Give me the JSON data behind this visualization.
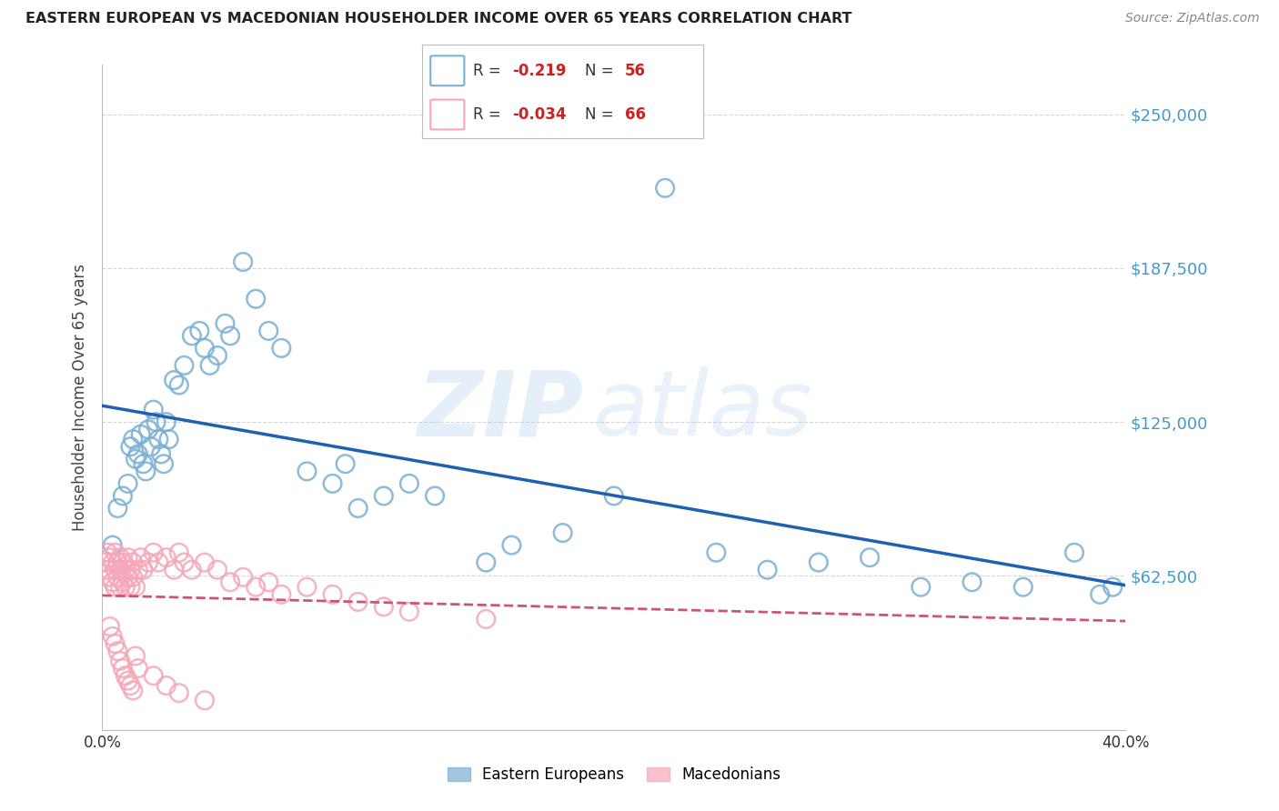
{
  "title": "EASTERN EUROPEAN VS MACEDONIAN HOUSEHOLDER INCOME OVER 65 YEARS CORRELATION CHART",
  "source": "Source: ZipAtlas.com",
  "ylabel": "Householder Income Over 65 years",
  "xlim": [
    0.0,
    0.4
  ],
  "ylim": [
    0,
    270000
  ],
  "yticks": [
    0,
    62500,
    125000,
    187500,
    250000
  ],
  "ytick_labels": [
    "",
    "$62,500",
    "$125,000",
    "$187,500",
    "$250,000"
  ],
  "xticks": [
    0.0,
    0.05,
    0.1,
    0.15,
    0.2,
    0.25,
    0.3,
    0.35,
    0.4
  ],
  "xtick_labels": [
    "0.0%",
    "",
    "",
    "",
    "",
    "",
    "",
    "",
    "40.0%"
  ],
  "legend_blue_label": "Eastern Europeans",
  "legend_pink_label": "Macedonians",
  "r_blue": "-0.219",
  "n_blue": "56",
  "r_pink": "-0.034",
  "n_pink": "66",
  "blue_color": "#7BAFD4",
  "pink_color": "#F4A7B9",
  "trend_blue_color": "#2060B0",
  "trend_pink_color": "#CC5577",
  "watermark_zip": "ZIP",
  "watermark_atlas": "atlas",
  "blue_x": [
    0.004,
    0.006,
    0.008,
    0.01,
    0.011,
    0.012,
    0.013,
    0.014,
    0.015,
    0.016,
    0.017,
    0.018,
    0.019,
    0.02,
    0.021,
    0.022,
    0.023,
    0.024,
    0.025,
    0.026,
    0.028,
    0.03,
    0.032,
    0.035,
    0.038,
    0.04,
    0.042,
    0.045,
    0.048,
    0.05,
    0.055,
    0.06,
    0.065,
    0.07,
    0.08,
    0.09,
    0.095,
    0.1,
    0.11,
    0.12,
    0.13,
    0.15,
    0.16,
    0.18,
    0.2,
    0.22,
    0.24,
    0.26,
    0.28,
    0.3,
    0.32,
    0.34,
    0.36,
    0.38,
    0.39,
    0.395
  ],
  "blue_y": [
    75000,
    90000,
    95000,
    100000,
    115000,
    118000,
    110000,
    112000,
    120000,
    108000,
    105000,
    122000,
    115000,
    130000,
    125000,
    118000,
    112000,
    108000,
    125000,
    118000,
    142000,
    140000,
    148000,
    160000,
    162000,
    155000,
    148000,
    152000,
    165000,
    160000,
    190000,
    175000,
    162000,
    155000,
    105000,
    100000,
    108000,
    90000,
    95000,
    100000,
    95000,
    68000,
    75000,
    80000,
    95000,
    220000,
    72000,
    65000,
    68000,
    70000,
    58000,
    60000,
    58000,
    72000,
    55000,
    58000
  ],
  "pink_x": [
    0.001,
    0.002,
    0.002,
    0.003,
    0.003,
    0.004,
    0.004,
    0.005,
    0.005,
    0.005,
    0.006,
    0.006,
    0.007,
    0.007,
    0.007,
    0.008,
    0.008,
    0.009,
    0.009,
    0.01,
    0.01,
    0.011,
    0.011,
    0.012,
    0.012,
    0.013,
    0.014,
    0.015,
    0.016,
    0.018,
    0.02,
    0.022,
    0.025,
    0.028,
    0.03,
    0.032,
    0.035,
    0.04,
    0.045,
    0.05,
    0.055,
    0.06,
    0.065,
    0.07,
    0.08,
    0.09,
    0.1,
    0.11,
    0.12,
    0.15,
    0.003,
    0.004,
    0.005,
    0.006,
    0.007,
    0.008,
    0.009,
    0.01,
    0.011,
    0.012,
    0.013,
    0.014,
    0.02,
    0.025,
    0.03,
    0.04
  ],
  "pink_y": [
    68000,
    72000,
    65000,
    70000,
    62000,
    68000,
    60000,
    72000,
    65000,
    58000,
    68000,
    62000,
    70000,
    65000,
    58000,
    68000,
    60000,
    65000,
    58000,
    70000,
    62000,
    65000,
    58000,
    68000,
    62000,
    58000,
    65000,
    70000,
    65000,
    68000,
    72000,
    68000,
    70000,
    65000,
    72000,
    68000,
    65000,
    68000,
    65000,
    60000,
    62000,
    58000,
    60000,
    55000,
    58000,
    55000,
    52000,
    50000,
    48000,
    45000,
    42000,
    38000,
    35000,
    32000,
    28000,
    25000,
    22000,
    20000,
    18000,
    16000,
    30000,
    25000,
    22000,
    18000,
    15000,
    12000
  ]
}
